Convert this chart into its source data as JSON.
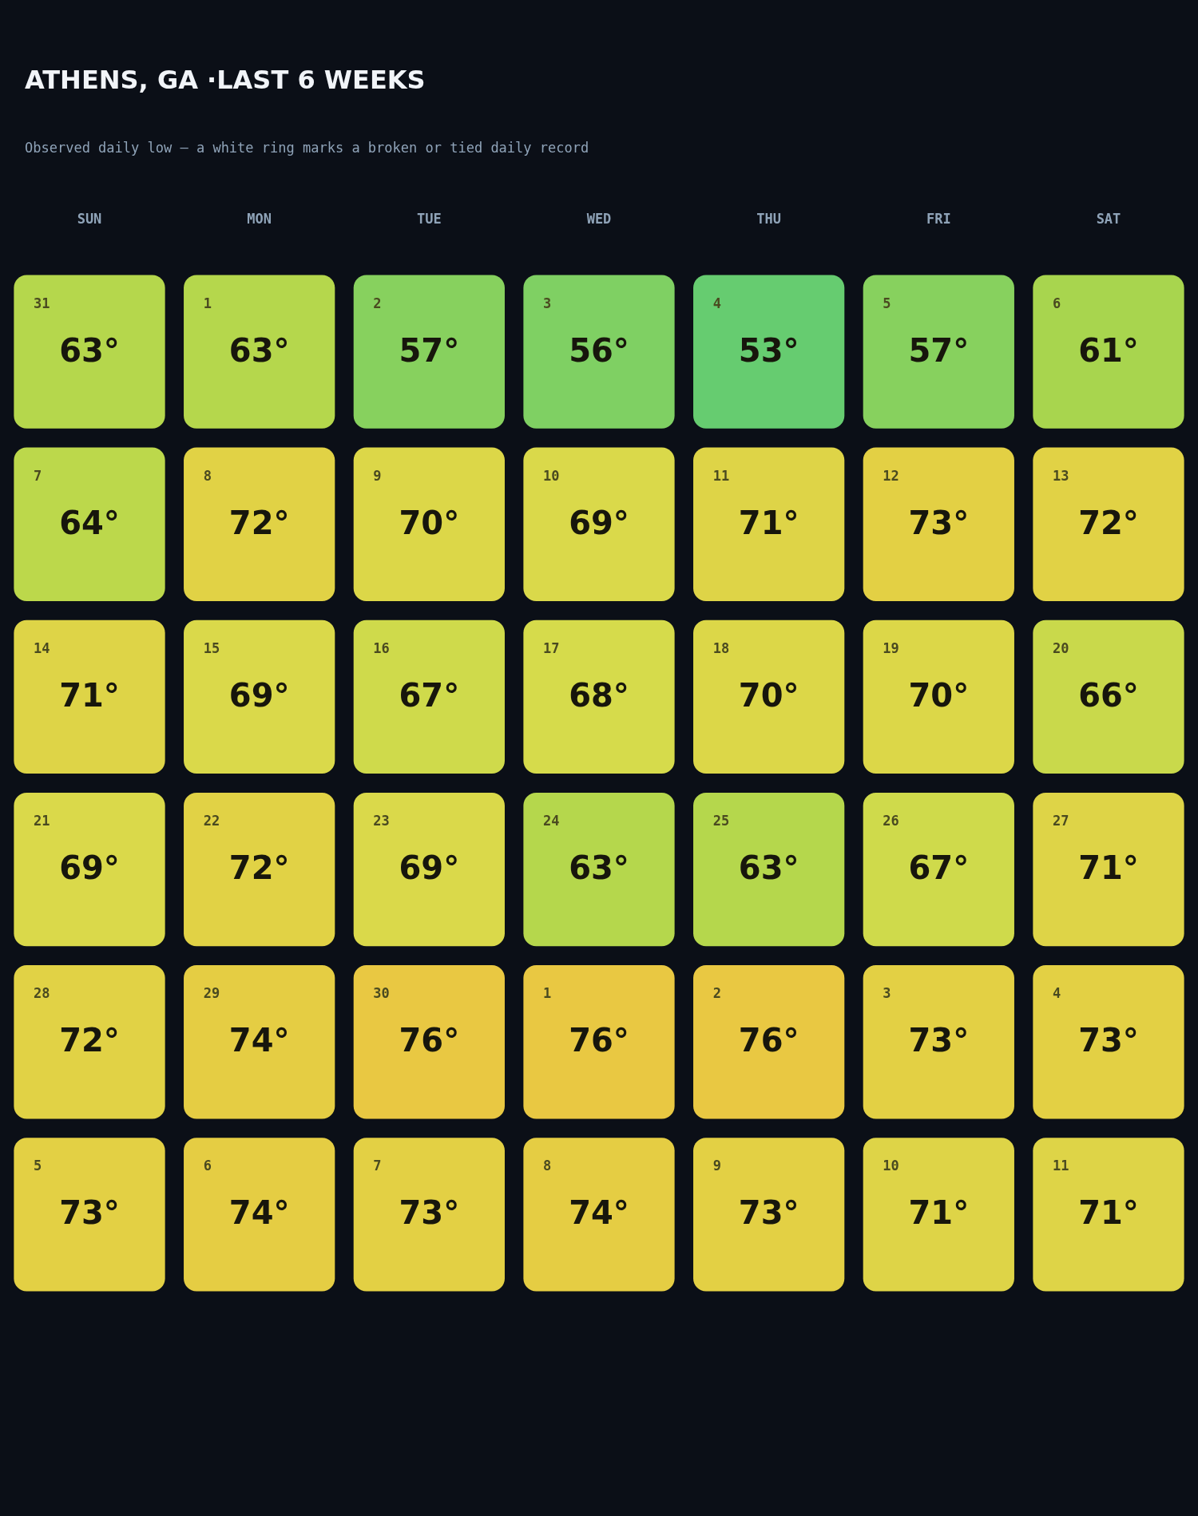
{
  "chart_data": {
    "type": "heatmap",
    "title": "ATHENS, GA ·LAST 6 WEEKS",
    "subtitle": "Observed daily low — a white ring marks a broken or tied daily record",
    "categories": [
      "SUN",
      "MON",
      "TUE",
      "WED",
      "THU",
      "FRI",
      "SAT"
    ],
    "y_categories": [
      null,
      null,
      null,
      null,
      null,
      null
    ],
    "cells": [
      [
        63,
        63,
        57,
        56,
        53,
        57,
        61
      ],
      [
        64,
        72,
        70,
        69,
        71,
        73,
        72
      ],
      [
        71,
        69,
        67,
        68,
        70,
        70,
        66
      ],
      [
        69,
        72,
        69,
        63,
        63,
        67,
        71
      ],
      [
        72,
        74,
        76,
        76,
        76,
        73,
        73
      ],
      [
        73,
        74,
        73,
        74,
        73,
        71,
        71
      ]
    ],
    "cell_labels": [
      [
        "63°",
        "63°",
        "57°",
        "56°",
        "53°",
        "57°",
        "61°"
      ],
      [
        "64°",
        "72°",
        "70°",
        "69°",
        "71°",
        "73°",
        "72°"
      ],
      [
        "71°",
        "69°",
        "67°",
        "68°",
        "70°",
        "70°",
        "66°"
      ],
      [
        "69°",
        "72°",
        "69°",
        "63°",
        "63°",
        "67°",
        "71°"
      ],
      [
        "72°",
        "74°",
        "76°",
        "76°",
        "76°",
        "73°",
        "73°"
      ],
      [
        "73°",
        "74°",
        "73°",
        "74°",
        "73°",
        "71°",
        "71°"
      ]
    ],
    "annotations": [
      "31",
      "1",
      "2",
      "3",
      "4",
      "5",
      "6",
      "7",
      "8",
      "9",
      "10",
      "11",
      "12",
      "13",
      "14",
      "15",
      "16",
      "17",
      "18",
      "19",
      "20",
      "21",
      "22",
      "23",
      "24",
      "25",
      "26",
      "27",
      "28",
      "29",
      "30",
      "1",
      "2",
      "3",
      "4",
      "5",
      "6",
      "7",
      "8",
      "9",
      "10",
      "11"
    ]
  }
}
